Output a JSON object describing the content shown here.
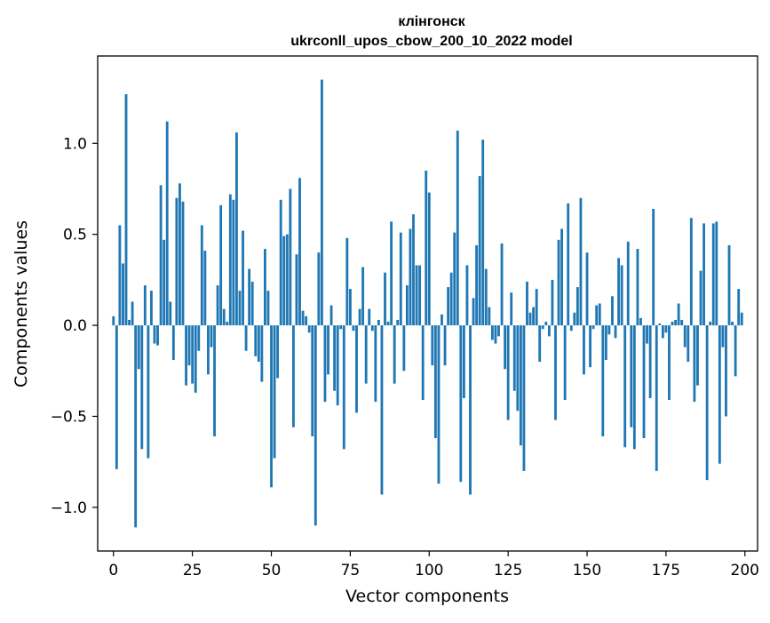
{
  "chart_data": {
    "type": "bar",
    "title_line1": "клінгонск",
    "title_line2": "ukrconll_upos_cbow_200_10_2022 model",
    "xlabel": "Vector components",
    "ylabel": "Components values",
    "xlim": [
      -5,
      204
    ],
    "ylim": [
      -1.24,
      1.48
    ],
    "xticks": [
      0,
      25,
      50,
      75,
      100,
      125,
      150,
      175,
      200
    ],
    "xtick_labels": [
      "0",
      "25",
      "50",
      "75",
      "100",
      "125",
      "150",
      "175",
      "200"
    ],
    "yticks": [
      -1.0,
      -0.5,
      0.0,
      0.5,
      1.0
    ],
    "ytick_labels": [
      "−1.0",
      "−0.5",
      "0.0",
      "0.5",
      "1.0"
    ],
    "grid": false,
    "bar_color": "#1f77b4",
    "bar_width": 0.8,
    "values": [
      0.05,
      -0.79,
      0.55,
      0.34,
      1.27,
      0.03,
      0.13,
      -1.11,
      -0.24,
      -0.68,
      0.22,
      -0.73,
      0.19,
      -0.1,
      -0.11,
      0.77,
      0.47,
      1.12,
      0.13,
      -0.19,
      0.7,
      0.78,
      0.68,
      -0.33,
      -0.22,
      -0.32,
      -0.37,
      -0.14,
      0.55,
      0.41,
      -0.27,
      -0.12,
      -0.61,
      0.22,
      0.66,
      0.09,
      0.02,
      0.72,
      0.69,
      1.06,
      0.19,
      0.52,
      -0.14,
      0.31,
      0.24,
      -0.17,
      -0.2,
      -0.31,
      0.42,
      0.19,
      -0.89,
      -0.73,
      -0.29,
      0.69,
      0.49,
      0.5,
      0.75,
      -0.56,
      0.39,
      0.81,
      0.08,
      0.05,
      -0.04,
      -0.61,
      -1.1,
      0.4,
      1.35,
      -0.42,
      -0.27,
      0.11,
      -0.36,
      -0.44,
      -0.02,
      -0.68,
      0.48,
      0.2,
      -0.03,
      -0.48,
      0.09,
      0.32,
      -0.32,
      0.09,
      -0.03,
      -0.42,
      0.03,
      -0.93,
      0.29,
      0.02,
      0.57,
      -0.32,
      0.03,
      0.51,
      -0.25,
      0.22,
      0.53,
      0.61,
      0.33,
      0.33,
      -0.41,
      0.85,
      0.73,
      -0.22,
      -0.62,
      -0.87,
      0.06,
      -0.22,
      0.21,
      0.29,
      0.51,
      1.07,
      -0.86,
      -0.4,
      0.33,
      -0.93,
      0.15,
      0.44,
      0.82,
      1.02,
      0.31,
      0.1,
      -0.08,
      -0.1,
      -0.06,
      0.45,
      -0.24,
      -0.52,
      0.18,
      -0.36,
      -0.47,
      -0.66,
      -0.8,
      0.24,
      0.07,
      0.1,
      0.2,
      -0.2,
      -0.02,
      0.02,
      -0.06,
      0.25,
      -0.52,
      0.47,
      0.53,
      -0.41,
      0.67,
      -0.03,
      0.07,
      0.21,
      0.7,
      -0.27,
      0.4,
      -0.23,
      -0.02,
      0.11,
      0.12,
      -0.61,
      -0.19,
      -0.05,
      0.16,
      -0.07,
      0.37,
      0.33,
      -0.67,
      0.46,
      -0.56,
      -0.68,
      0.42,
      0.04,
      -0.62,
      -0.1,
      -0.4,
      0.64,
      -0.8,
      0.01,
      -0.07,
      -0.04,
      -0.41,
      0.02,
      0.03,
      0.12,
      0.03,
      -0.12,
      -0.2,
      0.59,
      -0.42,
      -0.33,
      0.3,
      0.56,
      -0.85,
      0.02,
      0.56,
      0.57,
      -0.76,
      -0.12,
      -0.5,
      0.44,
      0.02,
      -0.28,
      0.2,
      0.07
    ]
  }
}
